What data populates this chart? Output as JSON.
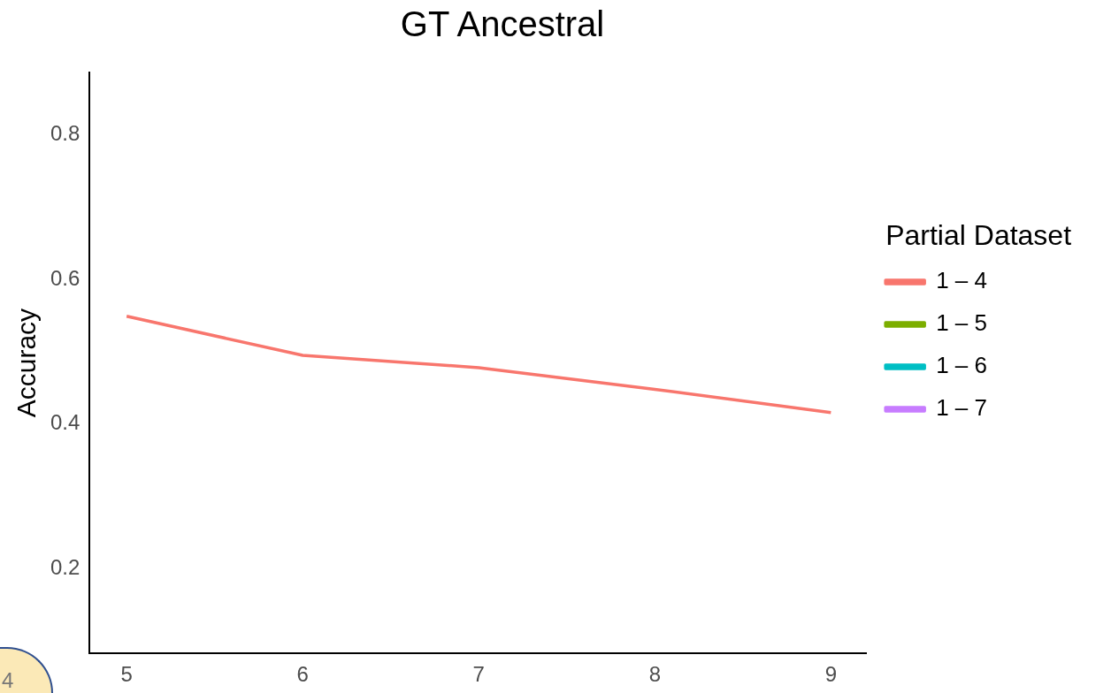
{
  "chart_data": {
    "type": "line",
    "title": "GT Ancestral",
    "ylabel": "Accuracy",
    "legend_title": "Partial Dataset",
    "legend": "right",
    "grid": false,
    "marker": "none",
    "line_style": "solid",
    "x": [
      5,
      6,
      7,
      8,
      9
    ],
    "xlim": [
      4.79,
      9.2
    ],
    "xticks": [
      5,
      6,
      7,
      8,
      9
    ],
    "ylim": [
      0.083,
      0.886
    ],
    "yticks": [
      0.2,
      0.4,
      0.6,
      0.8
    ],
    "series": [
      {
        "name": "1 – 4",
        "color": "#f8766d",
        "values": [
          0.549,
          0.495,
          0.478,
          0.448,
          0.416
        ]
      },
      {
        "name": "1 – 5",
        "color": "#7cae00",
        "values": [
          null,
          null,
          null,
          null,
          null
        ]
      },
      {
        "name": "1 – 6",
        "color": "#00bfc4",
        "values": [
          null,
          null,
          null,
          null,
          null
        ]
      },
      {
        "name": "1 – 7",
        "color": "#c77cff",
        "values": [
          null,
          null,
          null,
          null,
          null
        ]
      }
    ],
    "annotations": [
      "4"
    ]
  }
}
